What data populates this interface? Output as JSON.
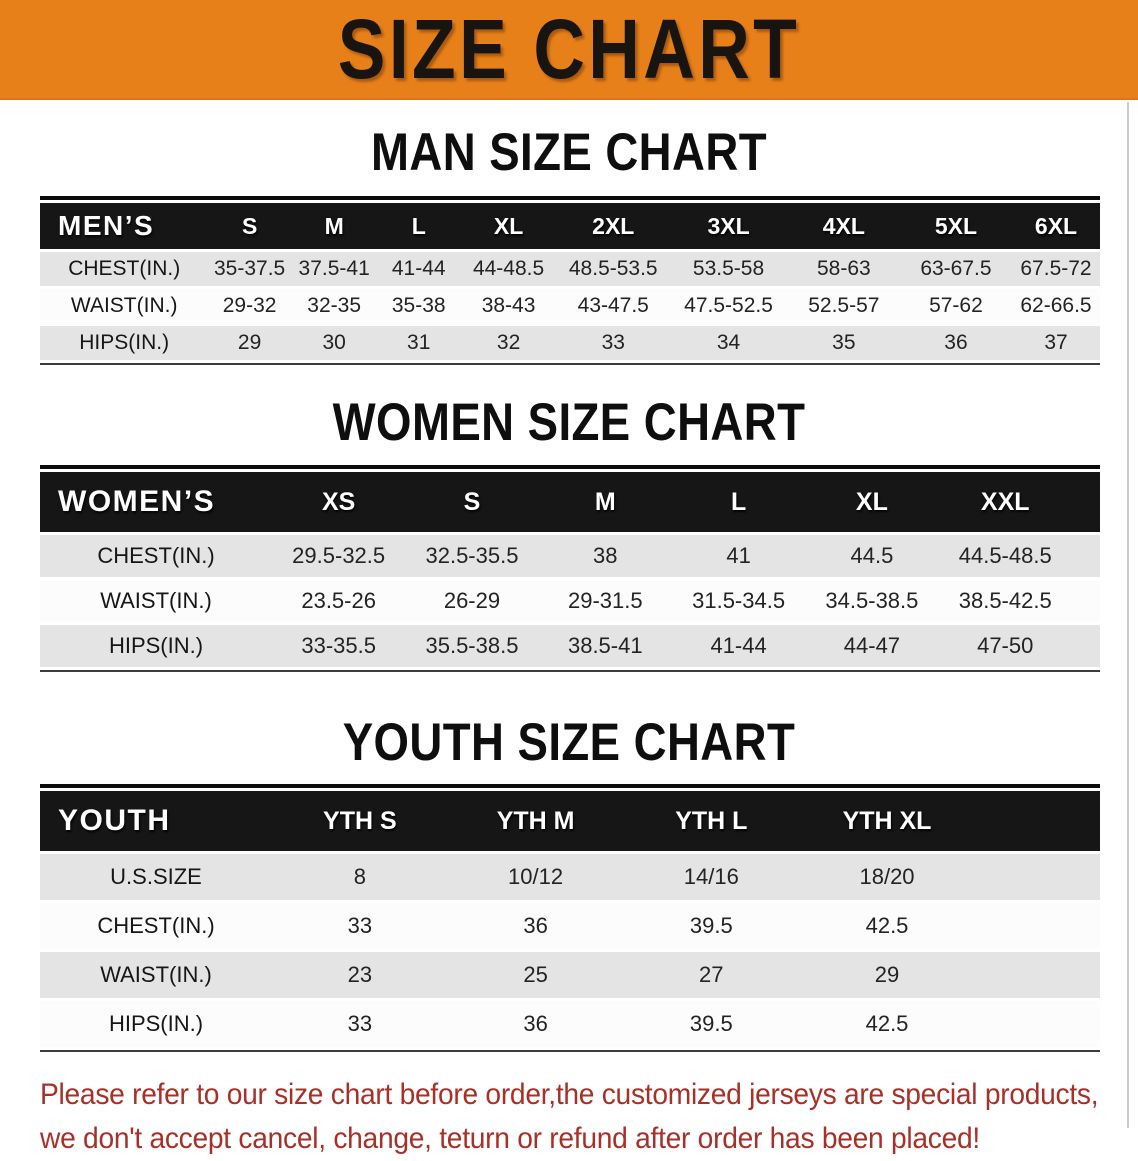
{
  "banner": {
    "title": "SIZE CHART",
    "bg_color": "#e8801a",
    "text_color": "#181410"
  },
  "sections": [
    {
      "id": "men",
      "title": "MAN SIZE CHART",
      "table": {
        "corner": "MEN’S",
        "columns": [
          "S",
          "M",
          "L",
          "XL",
          "2XL",
          "3XL",
          "4XL",
          "5XL",
          "6XL"
        ],
        "rows": [
          {
            "label": "CHEST(IN.)",
            "values": [
              "35-37.5",
              "37.5-41",
              "41-44",
              "44-48.5",
              "48.5-53.5",
              "53.5-58",
              "58-63",
              "63-67.5",
              "67.5-72"
            ]
          },
          {
            "label": "WAIST(IN.)",
            "values": [
              "29-32",
              "32-35",
              "35-38",
              "38-43",
              "43-47.5",
              "47.5-52.5",
              "52.5-57",
              "57-62",
              "62-66.5"
            ]
          },
          {
            "label": "HIPS(IN.)",
            "values": [
              "29",
              "30",
              "31",
              "32",
              "33",
              "34",
              "35",
              "36",
              "37"
            ]
          }
        ]
      }
    },
    {
      "id": "women",
      "title": "WOMEN SIZE CHART",
      "table": {
        "corner": "WOMEN’S",
        "columns": [
          "XS",
          "S",
          "M",
          "L",
          "XL",
          "XXL"
        ],
        "rows": [
          {
            "label": "CHEST(IN.)",
            "values": [
              "29.5-32.5",
              "32.5-35.5",
              "38",
              "41",
              "44.5",
              "44.5-48.5"
            ]
          },
          {
            "label": "WAIST(IN.)",
            "values": [
              "23.5-26",
              "26-29",
              "29-31.5",
              "31.5-34.5",
              "34.5-38.5",
              "38.5-42.5"
            ]
          },
          {
            "label": "HIPS(IN.)",
            "values": [
              "33-35.5",
              "35.5-38.5",
              "38.5-41",
              "41-44",
              "44-47",
              "47-50"
            ]
          }
        ]
      }
    },
    {
      "id": "youth",
      "title": "YOUTH SIZE CHART",
      "table": {
        "corner": "YOUTH",
        "columns": [
          "YTH S",
          "YTH M",
          "YTH L",
          "YTH XL"
        ],
        "rows": [
          {
            "label": "U.S.SIZE",
            "values": [
              "8",
              "10/12",
              "14/16",
              "18/20"
            ]
          },
          {
            "label": "CHEST(IN.)",
            "values": [
              "33",
              "36",
              "39.5",
              "42.5"
            ]
          },
          {
            "label": "WAIST(IN.)",
            "values": [
              "23",
              "25",
              "27",
              "29"
            ]
          },
          {
            "label": "HIPS(IN.)",
            "values": [
              "33",
              "36",
              "39.5",
              "42.5"
            ]
          }
        ]
      }
    }
  ],
  "footer": {
    "line1": "Please refer to our size chart before order,the customized jerseys are special products,",
    "line2": "we don't accept cancel, change, teturn or refund after order has been placed!",
    "text_color": "#a93028"
  },
  "style_colors": {
    "table_header_bg": "#161616",
    "row_gray": "#e4e4e4",
    "row_white": "#fcfcfc"
  }
}
